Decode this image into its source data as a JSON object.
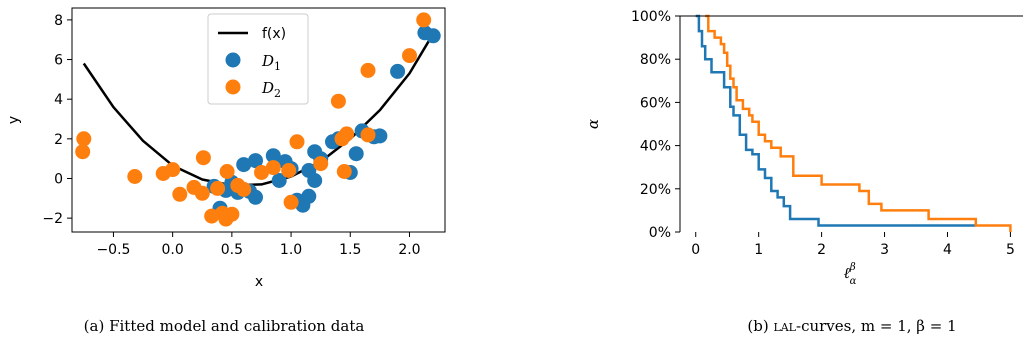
{
  "chart_data": [
    {
      "type": "scatter",
      "caption": "(a) Fitted model and calibration data",
      "xlabel": "x",
      "ylabel": "y",
      "xlim": [
        -0.85,
        2.3
      ],
      "ylim": [
        -2.7,
        8.6
      ],
      "xticks": [
        -0.5,
        0.0,
        0.5,
        1.0,
        1.5,
        2.0
      ],
      "xtick_labels": [
        "−0.5",
        "0.0",
        "0.5",
        "1.0",
        "1.5",
        "2.0"
      ],
      "yticks": [
        -2,
        0,
        2,
        4,
        6,
        8
      ],
      "ytick_labels": [
        "−2",
        "0",
        "2",
        "4",
        "6",
        "8"
      ],
      "legend": {
        "placement": "top-center",
        "entries": [
          {
            "label": "f(x)",
            "kind": "line",
            "color": "#000000"
          },
          {
            "label": "D",
            "subscript": "1",
            "kind": "marker",
            "color": "#1f77b4"
          },
          {
            "label": "D",
            "subscript": "2",
            "kind": "marker",
            "color": "#ff7f0e"
          }
        ]
      },
      "line": {
        "name": "f(x)",
        "color": "#000000",
        "points": [
          [
            -0.75,
            5.8
          ],
          [
            -0.5,
            3.6
          ],
          [
            -0.25,
            1.9
          ],
          [
            0.0,
            0.65
          ],
          [
            0.25,
            -0.05
          ],
          [
            0.5,
            -0.35
          ],
          [
            0.75,
            -0.3
          ],
          [
            1.0,
            0.1
          ],
          [
            1.25,
            0.85
          ],
          [
            1.5,
            2.0
          ],
          [
            1.75,
            3.45
          ],
          [
            2.0,
            5.3
          ],
          [
            2.18,
            7.1
          ]
        ]
      },
      "series": [
        {
          "name": "D1",
          "color": "#1f77b4",
          "points": [
            [
              0.35,
              -0.4
            ],
            [
              0.4,
              -1.5
            ],
            [
              0.45,
              -0.6
            ],
            [
              0.5,
              -0.2
            ],
            [
              0.55,
              -0.7
            ],
            [
              0.6,
              0.7
            ],
            [
              0.65,
              -0.65
            ],
            [
              0.7,
              0.9
            ],
            [
              0.7,
              -0.95
            ],
            [
              0.85,
              1.15
            ],
            [
              0.9,
              -0.1
            ],
            [
              0.95,
              0.85
            ],
            [
              1.0,
              0.5
            ],
            [
              1.05,
              -1.1
            ],
            [
              1.1,
              -1.35
            ],
            [
              1.15,
              -0.9
            ],
            [
              1.15,
              0.4
            ],
            [
              1.2,
              -0.1
            ],
            [
              1.2,
              1.35
            ],
            [
              1.25,
              1.0
            ],
            [
              1.35,
              1.85
            ],
            [
              1.4,
              2.0
            ],
            [
              1.5,
              0.3
            ],
            [
              1.55,
              1.25
            ],
            [
              1.6,
              2.4
            ],
            [
              1.7,
              2.1
            ],
            [
              1.75,
              2.15
            ],
            [
              1.9,
              5.4
            ],
            [
              2.13,
              7.35
            ],
            [
              2.2,
              7.2
            ]
          ]
        },
        {
          "name": "D2",
          "color": "#ff7f0e",
          "points": [
            [
              -0.75,
              2.0
            ],
            [
              -0.76,
              1.35
            ],
            [
              -0.32,
              0.1
            ],
            [
              -0.08,
              0.25
            ],
            [
              0.0,
              0.45
            ],
            [
              0.06,
              -0.8
            ],
            [
              0.18,
              -0.45
            ],
            [
              0.25,
              -0.75
            ],
            [
              0.26,
              1.05
            ],
            [
              0.33,
              -1.9
            ],
            [
              0.38,
              -0.5
            ],
            [
              0.42,
              -1.75
            ],
            [
              0.45,
              -2.05
            ],
            [
              0.46,
              0.35
            ],
            [
              0.5,
              -1.8
            ],
            [
              0.55,
              -0.35
            ],
            [
              0.6,
              -0.55
            ],
            [
              0.75,
              0.3
            ],
            [
              0.85,
              0.55
            ],
            [
              0.98,
              0.4
            ],
            [
              1.0,
              -1.2
            ],
            [
              1.05,
              1.85
            ],
            [
              1.25,
              0.75
            ],
            [
              1.4,
              3.9
            ],
            [
              1.43,
              2.0
            ],
            [
              1.45,
              0.35
            ],
            [
              1.47,
              2.25
            ],
            [
              1.65,
              2.2
            ],
            [
              1.65,
              5.45
            ],
            [
              2.0,
              6.2
            ],
            [
              2.12,
              8.0
            ]
          ]
        }
      ]
    },
    {
      "type": "line",
      "caption_prefix": "(b) ",
      "caption_sc": "lal",
      "caption_suffix": "-curves, m = 1, β = 1",
      "xlabel": "ℓ",
      "xlabel_sub": "α",
      "xlabel_sup": "β",
      "ylabel": "α",
      "xlim": [
        -0.25,
        5.2
      ],
      "ylim": [
        0,
        100
      ],
      "xticks": [
        0,
        1,
        2,
        3,
        4,
        5
      ],
      "xtick_labels": [
        "0",
        "1",
        "2",
        "3",
        "4",
        "5"
      ],
      "yticks": [
        0,
        20,
        40,
        60,
        80,
        100
      ],
      "ytick_labels": [
        "0%",
        "20%",
        "40%",
        "60%",
        "80%",
        "100%"
      ],
      "series": [
        {
          "color": "#1f77b4",
          "step_points": [
            [
              0.0,
              100
            ],
            [
              0.05,
              93
            ],
            [
              0.1,
              86
            ],
            [
              0.15,
              80
            ],
            [
              0.25,
              74
            ],
            [
              0.45,
              67
            ],
            [
              0.55,
              58
            ],
            [
              0.6,
              54
            ],
            [
              0.7,
              45
            ],
            [
              0.8,
              38
            ],
            [
              0.9,
              36
            ],
            [
              1.0,
              29
            ],
            [
              1.1,
              25
            ],
            [
              1.2,
              19
            ],
            [
              1.3,
              16
            ],
            [
              1.4,
              12
            ],
            [
              1.5,
              6
            ],
            [
              1.95,
              3
            ],
            [
              4.45,
              3
            ]
          ]
        },
        {
          "color": "#ff7f0e",
          "step_points": [
            [
              0.15,
              100
            ],
            [
              0.2,
              93
            ],
            [
              0.3,
              90
            ],
            [
              0.4,
              87
            ],
            [
              0.45,
              83
            ],
            [
              0.5,
              77
            ],
            [
              0.55,
              71
            ],
            [
              0.6,
              67
            ],
            [
              0.65,
              61
            ],
            [
              0.75,
              57
            ],
            [
              0.85,
              54
            ],
            [
              0.9,
              51
            ],
            [
              1.0,
              45
            ],
            [
              1.1,
              42
            ],
            [
              1.2,
              39
            ],
            [
              1.35,
              35
            ],
            [
              1.55,
              26
            ],
            [
              1.85,
              26
            ],
            [
              2.0,
              22
            ],
            [
              2.6,
              19
            ],
            [
              2.75,
              13
            ],
            [
              2.95,
              10
            ],
            [
              3.7,
              6
            ],
            [
              4.45,
              3
            ],
            [
              5.0,
              0
            ]
          ]
        }
      ]
    }
  ]
}
